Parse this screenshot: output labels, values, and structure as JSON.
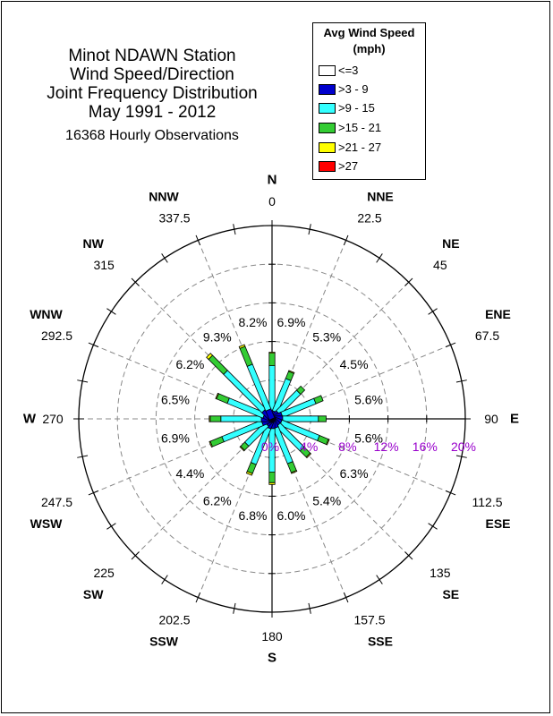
{
  "chart_data": {
    "type": "wind-rose",
    "title_lines": [
      "Minot NDAWN Station",
      "Wind Speed/Direction",
      "Joint Frequency Distribution",
      "May 1991 - 2012"
    ],
    "subtitle": "16368 Hourly Observations",
    "legend_title_lines": [
      "Avg Wind Speed",
      "(mph)"
    ],
    "speed_bins": [
      {
        "label": "<=3",
        "color": "#ffffff"
      },
      {
        "label": ">3 - 9",
        "color": "#0000cc"
      },
      {
        "label": ">9 - 15",
        "color": "#33ffff"
      },
      {
        "label": ">15 - 21",
        "color": "#33cc33"
      },
      {
        "label": ">21 - 27",
        "color": "#ffff00"
      },
      {
        "label": ">27",
        "color": "#ff0000"
      }
    ],
    "radial_ticks": [
      {
        "value": 0,
        "label": "0%"
      },
      {
        "value": 4,
        "label": "4%"
      },
      {
        "value": 8,
        "label": "8%"
      },
      {
        "value": 12,
        "label": "12%"
      },
      {
        "value": 16,
        "label": "16%"
      },
      {
        "value": 20,
        "label": "20%"
      }
    ],
    "radial_tick_color": "#9900cc",
    "rmax": 20,
    "directions": [
      {
        "compass": "N",
        "angle": 0,
        "angle_label": "0",
        "freq_label": "6.9%",
        "segments": [
          0,
          0.8,
          4.7,
          1.3,
          0.1,
          0
        ]
      },
      {
        "compass": "NNE",
        "angle": 22.5,
        "angle_label": "22.5",
        "freq_label": "5.3%",
        "segments": [
          0,
          0.8,
          3.6,
          0.8,
          0.1,
          0
        ]
      },
      {
        "compass": "NE",
        "angle": 45,
        "angle_label": "45",
        "freq_label": "4.5%",
        "segments": [
          0,
          0.9,
          3.0,
          0.6,
          0.0,
          0
        ]
      },
      {
        "compass": "ENE",
        "angle": 67.5,
        "angle_label": "67.5",
        "freq_label": "5.6%",
        "segments": [
          0,
          1.1,
          3.7,
          0.8,
          0.0,
          0
        ]
      },
      {
        "compass": "E",
        "angle": 90,
        "angle_label": "90",
        "freq_label": "5.6%",
        "segments": [
          0,
          1.1,
          3.7,
          0.8,
          0.0,
          0
        ]
      },
      {
        "compass": "ESE",
        "angle": 112.5,
        "angle_label": "112.5",
        "freq_label": "6.3%",
        "segments": [
          0,
          1.0,
          4.2,
          1.0,
          0.1,
          0
        ]
      },
      {
        "compass": "SE",
        "angle": 135,
        "angle_label": "135",
        "freq_label": "5.4%",
        "segments": [
          0,
          0.9,
          3.5,
          0.9,
          0.1,
          0
        ]
      },
      {
        "compass": "SSE",
        "angle": 157.5,
        "angle_label": "157.5",
        "freq_label": "6.0%",
        "segments": [
          0,
          1.0,
          3.9,
          1.0,
          0.1,
          0
        ]
      },
      {
        "compass": "S",
        "angle": 180,
        "angle_label": "180",
        "freq_label": "6.8%",
        "segments": [
          0,
          1.0,
          4.5,
          1.1,
          0.2,
          0
        ]
      },
      {
        "compass": "SSW",
        "angle": 202.5,
        "angle_label": "202.5",
        "freq_label": "6.2%",
        "segments": [
          0,
          1.0,
          4.0,
          1.0,
          0.2,
          0
        ]
      },
      {
        "compass": "SW",
        "angle": 225,
        "angle_label": "225",
        "freq_label": "4.4%",
        "segments": [
          0,
          0.8,
          2.9,
          0.6,
          0.1,
          0
        ]
      },
      {
        "compass": "WSW",
        "angle": 247.5,
        "angle_label": "247.5",
        "freq_label": "6.9%",
        "segments": [
          0,
          1.1,
          4.4,
          1.3,
          0.1,
          0
        ]
      },
      {
        "compass": "W",
        "angle": 270,
        "angle_label": "270",
        "freq_label": "6.5%",
        "segments": [
          0,
          1.1,
          4.2,
          1.1,
          0.1,
          0
        ]
      },
      {
        "compass": "WNW",
        "angle": 292.5,
        "angle_label": "292.5",
        "freq_label": "6.2%",
        "segments": [
          0,
          0.9,
          4.0,
          1.2,
          0.1,
          0
        ]
      },
      {
        "compass": "NW",
        "angle": 315,
        "angle_label": "315",
        "freq_label": "9.3%",
        "segments": [
          0,
          1.2,
          5.6,
          2.2,
          0.3,
          0
        ]
      },
      {
        "compass": "NNW",
        "angle": 337.5,
        "angle_label": "337.5",
        "freq_label": "8.2%",
        "segments": [
          0,
          1.0,
          5.0,
          2.0,
          0.2,
          0
        ]
      }
    ]
  }
}
